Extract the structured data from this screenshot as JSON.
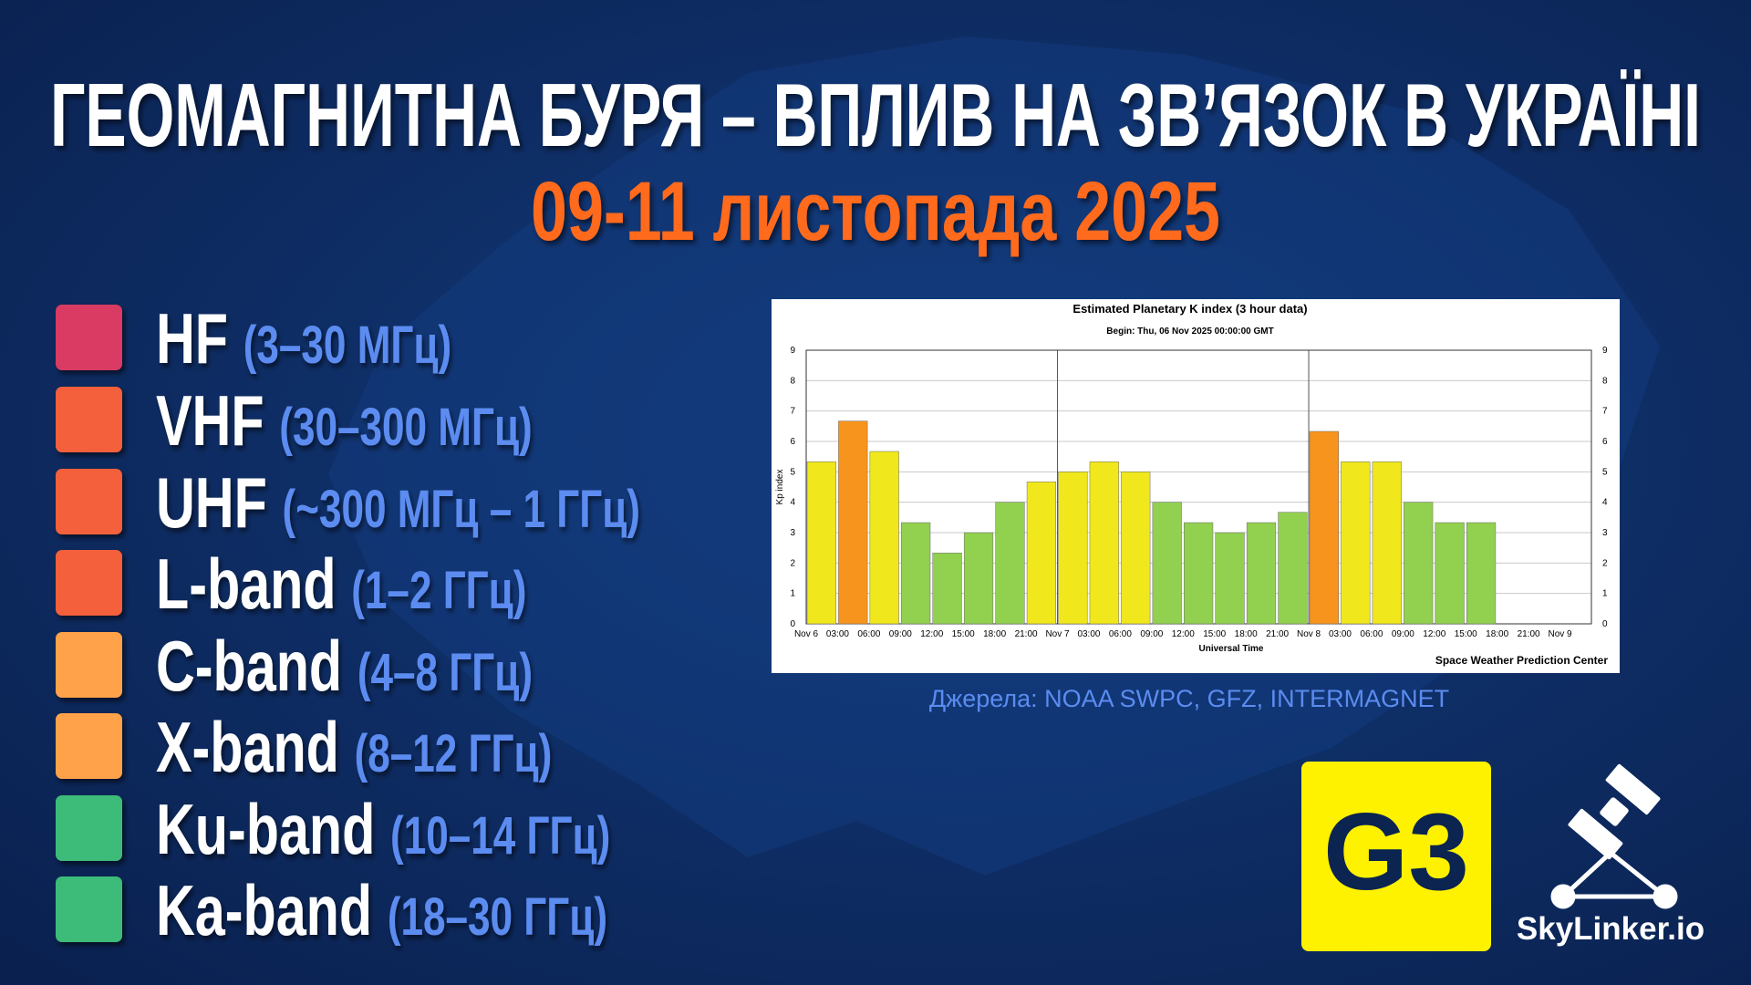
{
  "header": {
    "title": "ГЕОМАГНИТНА БУРЯ – ВПЛИВ НА ЗВ’ЯЗОК В УКРАЇНІ",
    "subtitle": "09-11 листопада 2025"
  },
  "bands": [
    {
      "name": "HF",
      "range": "(3–30 МГц)",
      "color": "#d93a62"
    },
    {
      "name": "VHF",
      "range": "(30–300 МГц)",
      "color": "#f4603a"
    },
    {
      "name": "UHF",
      "range": "(~300 МГц – 1 ГГц)",
      "color": "#f4603a"
    },
    {
      "name": "L-band",
      "range": "(1–2 ГГц)",
      "color": "#f4603a"
    },
    {
      "name": "C-band",
      "range": "(4–8 ГГц)",
      "color": "#ffa24a"
    },
    {
      "name": "X-band",
      "range": "(8–12 ГГц)",
      "color": "#ffa24a"
    },
    {
      "name": "Ku-band",
      "range": "(10–14 ГГц)",
      "color": "#3dbb79"
    },
    {
      "name": "Ka-band",
      "range": "(18–30 ГГц)",
      "color": "#3dbb79"
    }
  ],
  "chart_data": {
    "type": "bar",
    "title": "Estimated Planetary K index (3 hour data)",
    "subtitle": "Begin: Thu, 06 Nov 2025 00:00:00 GMT",
    "xlabel": "Universal Time",
    "ylabel": "Kp index",
    "credit": "Space Weather Prediction Center",
    "categories": [
      "Nov 6",
      "03:00",
      "06:00",
      "09:00",
      "12:00",
      "15:00",
      "18:00",
      "21:00",
      "Nov 7",
      "03:00",
      "06:00",
      "09:00",
      "12:00",
      "15:00",
      "18:00",
      "21:00",
      "Nov 8",
      "03:00",
      "06:00",
      "09:00",
      "12:00",
      "15:00",
      "18:00",
      "21:00",
      "Nov 9"
    ],
    "values": [
      5.33,
      6.67,
      5.67,
      3.33,
      2.33,
      3,
      4,
      4.67,
      5,
      5.33,
      5,
      4,
      3.33,
      3,
      3.33,
      3.67,
      6.33,
      5.33,
      5.33,
      4,
      3.33,
      3.33,
      null,
      null,
      null
    ],
    "colors": [
      "#f0e81c",
      "#f7941d",
      "#f0e81c",
      "#92d050",
      "#92d050",
      "#92d050",
      "#92d050",
      "#f0e81c",
      "#f0e81c",
      "#f0e81c",
      "#f0e81c",
      "#92d050",
      "#92d050",
      "#92d050",
      "#92d050",
      "#92d050",
      "#f7941d",
      "#f0e81c",
      "#f0e81c",
      "#92d050",
      "#92d050",
      "#92d050",
      null,
      null,
      null
    ],
    "ylim": [
      0,
      9
    ],
    "yticks": [
      0,
      1,
      2,
      3,
      4,
      5,
      6,
      7,
      8,
      9
    ],
    "grid": true
  },
  "source": "Джерела: NOAA SWPC, GFZ, INTERMAGNET",
  "badge": "G3",
  "logo": "SkyLinker.io"
}
